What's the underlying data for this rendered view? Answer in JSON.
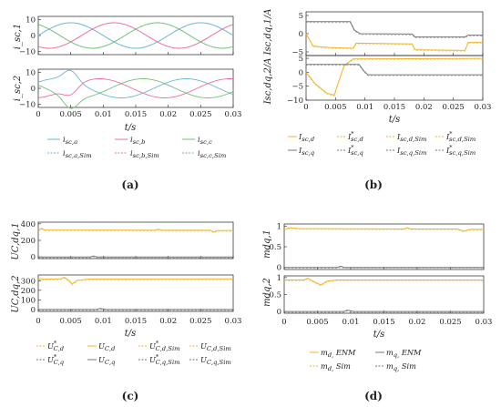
{
  "captions": [
    "(a)",
    "(b)",
    "(c)",
    "(d)"
  ],
  "colors": {
    "a": "#6bb6d9",
    "b": "#ec6fa0",
    "c": "#72c07a",
    "d": "#f0b429",
    "q": "#777777",
    "axis": "#222222"
  },
  "chart_data": [
    {
      "id": "a",
      "type": "line",
      "caption": "(a)",
      "xlabel": "t/s",
      "xlim": [
        0,
        0.03
      ],
      "xticks": [
        "0",
        "0.005",
        "0.01",
        "0.015",
        "0.02",
        "0.025",
        "0.03"
      ],
      "panels": [
        {
          "ylabel": "i_sc,1",
          "ylim": [
            -12,
            12
          ],
          "yticks": [
            "10",
            "0",
            "−10"
          ],
          "yticks_values": [
            10,
            0,
            -10
          ],
          "series": [
            {
              "name": "isc,a",
              "color": "a",
              "dash": false,
              "amp": 8,
              "phase_deg": 0
            },
            {
              "name": "isc,b",
              "color": "b",
              "dash": false,
              "amp": 8,
              "phase_deg": -120
            },
            {
              "name": "isc,c",
              "color": "c",
              "dash": false,
              "amp": 8,
              "phase_deg": 120
            },
            {
              "name": "isc,a,Sim",
              "color": "a",
              "dash": true,
              "amp": 8,
              "phase_deg": 0
            },
            {
              "name": "isc,b,Sim",
              "color": "b",
              "dash": true,
              "amp": 8,
              "phase_deg": -120
            },
            {
              "name": "isc,c,Sim",
              "color": "c",
              "dash": true,
              "amp": 8,
              "phase_deg": 120
            }
          ]
        },
        {
          "ylabel": "i_sc,2",
          "ylim": [
            -12,
            12
          ],
          "yticks": [
            "10",
            "0",
            "−10"
          ],
          "yticks_values": [
            10,
            0,
            -10
          ],
          "series": [
            {
              "name": "isc,a",
              "color": "a",
              "dash": false,
              "amp": 6,
              "phase_deg": 40,
              "transient": true
            },
            {
              "name": "isc,b",
              "color": "b",
              "dash": false,
              "amp": 6,
              "phase_deg": -80,
              "transient": true
            },
            {
              "name": "isc,c",
              "color": "c",
              "dash": false,
              "amp": 6,
              "phase_deg": 160,
              "transient": true
            }
          ]
        }
      ],
      "legend": [
        {
          "label": "isc,a",
          "color": "a",
          "dash": false
        },
        {
          "label": "isc,b",
          "color": "b",
          "dash": false
        },
        {
          "label": "isc,c",
          "color": "c",
          "dash": false
        },
        {
          "label": "isc,a,Sim",
          "color": "a",
          "dash": true
        },
        {
          "label": "isc,b,Sim",
          "color": "b",
          "dash": true
        },
        {
          "label": "isc,c,Sim",
          "color": "c",
          "dash": true
        }
      ]
    },
    {
      "id": "b",
      "type": "line",
      "caption": "(b)",
      "xlabel": "t/s",
      "xlim": [
        0,
        0.03
      ],
      "xticks": [
        "0",
        "0.005",
        "0.01",
        "0.015",
        "0.02",
        "0.025",
        "0.03"
      ],
      "ylabel": "Isc,dq,2/A   Isc,dq,1/A",
      "panels": [
        {
          "ylim": [
            -6,
            6
          ],
          "yticks": [
            "5",
            "0",
            "−5"
          ],
          "yticks_values": [
            5,
            0,
            -5
          ],
          "series": [
            {
              "name": "Isc,d",
              "color": "d",
              "points": [
                [
                  0,
                  0.0
                ],
                [
                  0.0012,
                  -3.4
                ],
                [
                  0.004,
                  -3.8
                ],
                [
                  0.008,
                  -4.0
                ],
                [
                  0.0085,
                  -2.6
                ],
                [
                  0.018,
                  -2.8
                ],
                [
                  0.0185,
                  -4.4
                ],
                [
                  0.027,
                  -4.6
                ],
                [
                  0.0275,
                  -2.4
                ],
                [
                  0.03,
                  -2.4
                ]
              ]
            },
            {
              "name": "Isc,q",
              "color": "q",
              "points": [
                [
                  0,
                  3.3
                ],
                [
                  0.0075,
                  3.3
                ],
                [
                  0.0082,
                  1.0
                ],
                [
                  0.0092,
                  0.0
                ],
                [
                  0.018,
                  -0.1
                ],
                [
                  0.0185,
                  -0.9
                ],
                [
                  0.027,
                  -0.9
                ],
                [
                  0.0275,
                  -0.4
                ],
                [
                  0.03,
                  -0.4
                ]
              ]
            }
          ]
        },
        {
          "ylim": [
            -10,
            6
          ],
          "yticks": [
            "5",
            "0",
            "−5",
            "−10"
          ],
          "yticks_values": [
            5,
            0,
            -5,
            -10
          ],
          "series": [
            {
              "name": "Isc,d",
              "color": "d",
              "points": [
                [
                  0,
                  0
                ],
                [
                  0.0015,
                  -4.0
                ],
                [
                  0.0035,
                  -7.5
                ],
                [
                  0.0048,
                  -8.2
                ],
                [
                  0.0055,
                  -3.5
                ],
                [
                  0.0065,
                  2.5
                ],
                [
                  0.008,
                  4.8
                ],
                [
                  0.03,
                  5.0
                ]
              ]
            },
            {
              "name": "Isc,q",
              "color": "q",
              "points": [
                [
                  0,
                  2.8
                ],
                [
                  0.009,
                  2.8
                ],
                [
                  0.0098,
                  0.5
                ],
                [
                  0.0105,
                  -0.9
                ],
                [
                  0.03,
                  -0.9
                ]
              ]
            }
          ]
        }
      ],
      "legend": [
        {
          "label": "Isc,d",
          "color": "d",
          "dash": false
        },
        {
          "label": "I*sc,d",
          "color": "d",
          "dash": true
        },
        {
          "label": "Isc,d,Sim",
          "color": "d",
          "dash": true
        },
        {
          "label": "I*sc,d,Sim",
          "color": "d",
          "dash": true
        },
        {
          "label": "Isc,q",
          "color": "q",
          "dash": false
        },
        {
          "label": "I*sc,q",
          "color": "q",
          "dash": true
        },
        {
          "label": "Isc,q,Sim",
          "color": "q",
          "dash": true
        },
        {
          "label": "I*sc,q,Sim",
          "color": "q",
          "dash": true
        }
      ]
    },
    {
      "id": "c",
      "type": "line",
      "caption": "(c)",
      "xlabel": "t/s",
      "xlim": [
        0,
        0.03
      ],
      "xticks": [
        "0",
        "0.005",
        "0.01",
        "0.015",
        "0.02",
        "0.025",
        "0.03"
      ],
      "panels": [
        {
          "ylabel": "UC,dq,1",
          "ylim": [
            -20,
            420
          ],
          "yticks": [
            "400",
            "200",
            "0"
          ],
          "yticks_values": [
            400,
            200,
            0
          ],
          "series": [
            {
              "name": "UC,d",
              "color": "d",
              "points": [
                [
                  0,
                  320
                ],
                [
                  0.0005,
                  345
                ],
                [
                  0.001,
                  325
                ],
                [
                  0.018,
                  322
                ],
                [
                  0.0185,
                  335
                ],
                [
                  0.019,
                  322
                ],
                [
                  0.0265,
                  322
                ],
                [
                  0.027,
                  300
                ],
                [
                  0.0275,
                  318
                ],
                [
                  0.03,
                  320
                ]
              ]
            },
            {
              "name": "UC,q",
              "color": "q",
              "points": [
                [
                  0,
                  0
                ],
                [
                  0.008,
                  0
                ],
                [
                  0.0085,
                  12
                ],
                [
                  0.009,
                  0
                ],
                [
                  0.03,
                  0
                ]
              ]
            }
          ]
        },
        {
          "ylabel": "UC,dq,2",
          "ylim": [
            -20,
            360
          ],
          "yticks": [
            "300",
            "200",
            "100",
            "0"
          ],
          "yticks_values": [
            300,
            200,
            100,
            0
          ],
          "series": [
            {
              "name": "UC,d",
              "color": "d",
              "points": [
                [
                  0,
                  315
                ],
                [
                  0.0035,
                  320
                ],
                [
                  0.004,
                  335
                ],
                [
                  0.0048,
                  300
                ],
                [
                  0.0052,
                  265
                ],
                [
                  0.006,
                  305
                ],
                [
                  0.008,
                  318
                ],
                [
                  0.03,
                  320
                ]
              ]
            },
            {
              "name": "UC,q",
              "color": "q",
              "points": [
                [
                  0,
                  0
                ],
                [
                  0.009,
                  0
                ],
                [
                  0.0095,
                  10
                ],
                [
                  0.0105,
                  0
                ],
                [
                  0.03,
                  0
                ]
              ]
            }
          ]
        }
      ],
      "legend": [
        {
          "label": "U*C,d",
          "color": "d",
          "dash": true
        },
        {
          "label": "UC,d",
          "color": "d",
          "dash": false
        },
        {
          "label": "U*C,d,Sim",
          "color": "d",
          "dash": true
        },
        {
          "label": "UC,d,Sim",
          "color": "d",
          "dash": true
        },
        {
          "label": "U*C,q",
          "color": "q",
          "dash": true
        },
        {
          "label": "UC,q",
          "color": "q",
          "dash": false
        },
        {
          "label": "U*C,q,Sim",
          "color": "q",
          "dash": true
        },
        {
          "label": "UC,q,Sim",
          "color": "q",
          "dash": true
        }
      ]
    },
    {
      "id": "d",
      "type": "line",
      "caption": "(d)",
      "xlabel": "t/s",
      "xlim": [
        0,
        0.03
      ],
      "xticks": [
        "0",
        "0.005",
        "0.01",
        "0.015",
        "0.02",
        "0.025",
        "0.03"
      ],
      "panels": [
        {
          "ylabel": "mdq,1",
          "ylim": [
            -0.05,
            1.05
          ],
          "yticks": [
            "1",
            "0.5",
            "0"
          ],
          "yticks_values": [
            1,
            0.5,
            0
          ],
          "series": [
            {
              "name": "md, ENM",
              "color": "d",
              "points": [
                [
                  0,
                  0.93
                ],
                [
                  0.001,
                  0.96
                ],
                [
                  0.002,
                  0.94
                ],
                [
                  0.018,
                  0.93
                ],
                [
                  0.0185,
                  0.96
                ],
                [
                  0.019,
                  0.93
                ],
                [
                  0.026,
                  0.93
                ],
                [
                  0.027,
                  0.88
                ],
                [
                  0.028,
                  0.92
                ],
                [
                  0.03,
                  0.92
                ]
              ]
            },
            {
              "name": "mq, ENM",
              "color": "q",
              "points": [
                [
                  0,
                  0.0
                ],
                [
                  0.008,
                  0.0
                ],
                [
                  0.0085,
                  0.03
                ],
                [
                  0.009,
                  0.0
                ],
                [
                  0.03,
                  0.0
                ]
              ]
            }
          ]
        },
        {
          "ylabel": "mdq,2",
          "ylim": [
            -0.05,
            1.05
          ],
          "yticks": [
            "1",
            "0.5",
            "0"
          ],
          "yticks_values": [
            1,
            0.5,
            0
          ],
          "series": [
            {
              "name": "md, ENM",
              "color": "d",
              "points": [
                [
                  0,
                  0.93
                ],
                [
                  0.003,
                  0.93
                ],
                [
                  0.0035,
                  0.98
                ],
                [
                  0.004,
                  0.93
                ],
                [
                  0.0055,
                  0.78
                ],
                [
                  0.0065,
                  0.9
                ],
                [
                  0.008,
                  0.93
                ],
                [
                  0.03,
                  0.93
                ]
              ]
            },
            {
              "name": "mq, ENM",
              "color": "q",
              "points": [
                [
                  0,
                  0.0
                ],
                [
                  0.009,
                  0.0
                ],
                [
                  0.0095,
                  0.04
                ],
                [
                  0.0105,
                  0.0
                ],
                [
                  0.03,
                  0.0
                ]
              ]
            }
          ]
        }
      ],
      "legend": [
        {
          "label": "md, ENM",
          "color": "d",
          "dash": false
        },
        {
          "label": "mq, ENM",
          "color": "q",
          "dash": false
        },
        {
          "label": "md, Sim",
          "color": "d",
          "dash": true
        },
        {
          "label": "mq, Sim",
          "color": "q",
          "dash": true
        }
      ]
    }
  ]
}
